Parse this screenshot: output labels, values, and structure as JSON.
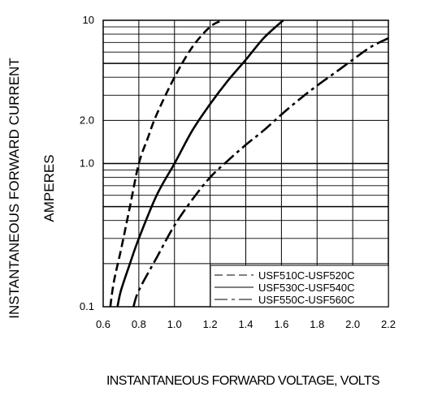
{
  "chart_data": {
    "type": "line",
    "title": "",
    "xlabel": "INSTANTANEOUS FORWARD VOLTAGE,  VOLTS",
    "ylabel_line1": "INSTANTANEOUS FORWARD CURRENT",
    "ylabel_line2": "AMPERES",
    "xlim": [
      0.6,
      2.2
    ],
    "ylim": [
      0.1,
      10
    ],
    "yscale": "log",
    "grid": true,
    "x_ticks": [
      0.6,
      0.8,
      1.0,
      1.2,
      1.4,
      1.6,
      1.8,
      2.0,
      2.2
    ],
    "x_tick_labels": [
      "0.6",
      "0.8",
      "1.0",
      "1.2",
      "1.4",
      "1.6",
      "1.8",
      "2.0",
      "2.2"
    ],
    "y_ticks": [
      0.1,
      1.0,
      2.0,
      10
    ],
    "y_tick_labels": [
      "0.1",
      "1.0",
      "2.0",
      "10"
    ],
    "legend_position": "bottom-right",
    "series": [
      {
        "name": "USF510C-USF520C",
        "style": "dashed",
        "x": [
          0.64,
          0.66,
          0.7,
          0.75,
          0.8,
          0.85,
          0.9,
          1.0,
          1.1,
          1.2,
          1.27
        ],
        "y": [
          0.1,
          0.15,
          0.25,
          0.5,
          1.0,
          1.5,
          2.2,
          4.0,
          6.5,
          9.0,
          10
        ]
      },
      {
        "name": "USF530C-USF540C",
        "style": "solid",
        "x": [
          0.68,
          0.7,
          0.75,
          0.8,
          0.9,
          1.0,
          1.1,
          1.2,
          1.3,
          1.4,
          1.5,
          1.61
        ],
        "y": [
          0.1,
          0.13,
          0.2,
          0.3,
          0.6,
          1.0,
          1.7,
          2.6,
          3.8,
          5.3,
          7.5,
          10
        ]
      },
      {
        "name": "USF550C-USF560C",
        "style": "dashdot",
        "x": [
          0.77,
          0.8,
          0.9,
          1.0,
          1.1,
          1.2,
          1.3,
          1.4,
          1.5,
          1.6,
          1.7,
          1.8,
          1.9,
          2.0,
          2.1,
          2.2
        ],
        "y": [
          0.1,
          0.13,
          0.22,
          0.37,
          0.56,
          0.8,
          1.05,
          1.35,
          1.7,
          2.2,
          2.8,
          3.5,
          4.3,
          5.3,
          6.5,
          7.5
        ]
      }
    ]
  }
}
